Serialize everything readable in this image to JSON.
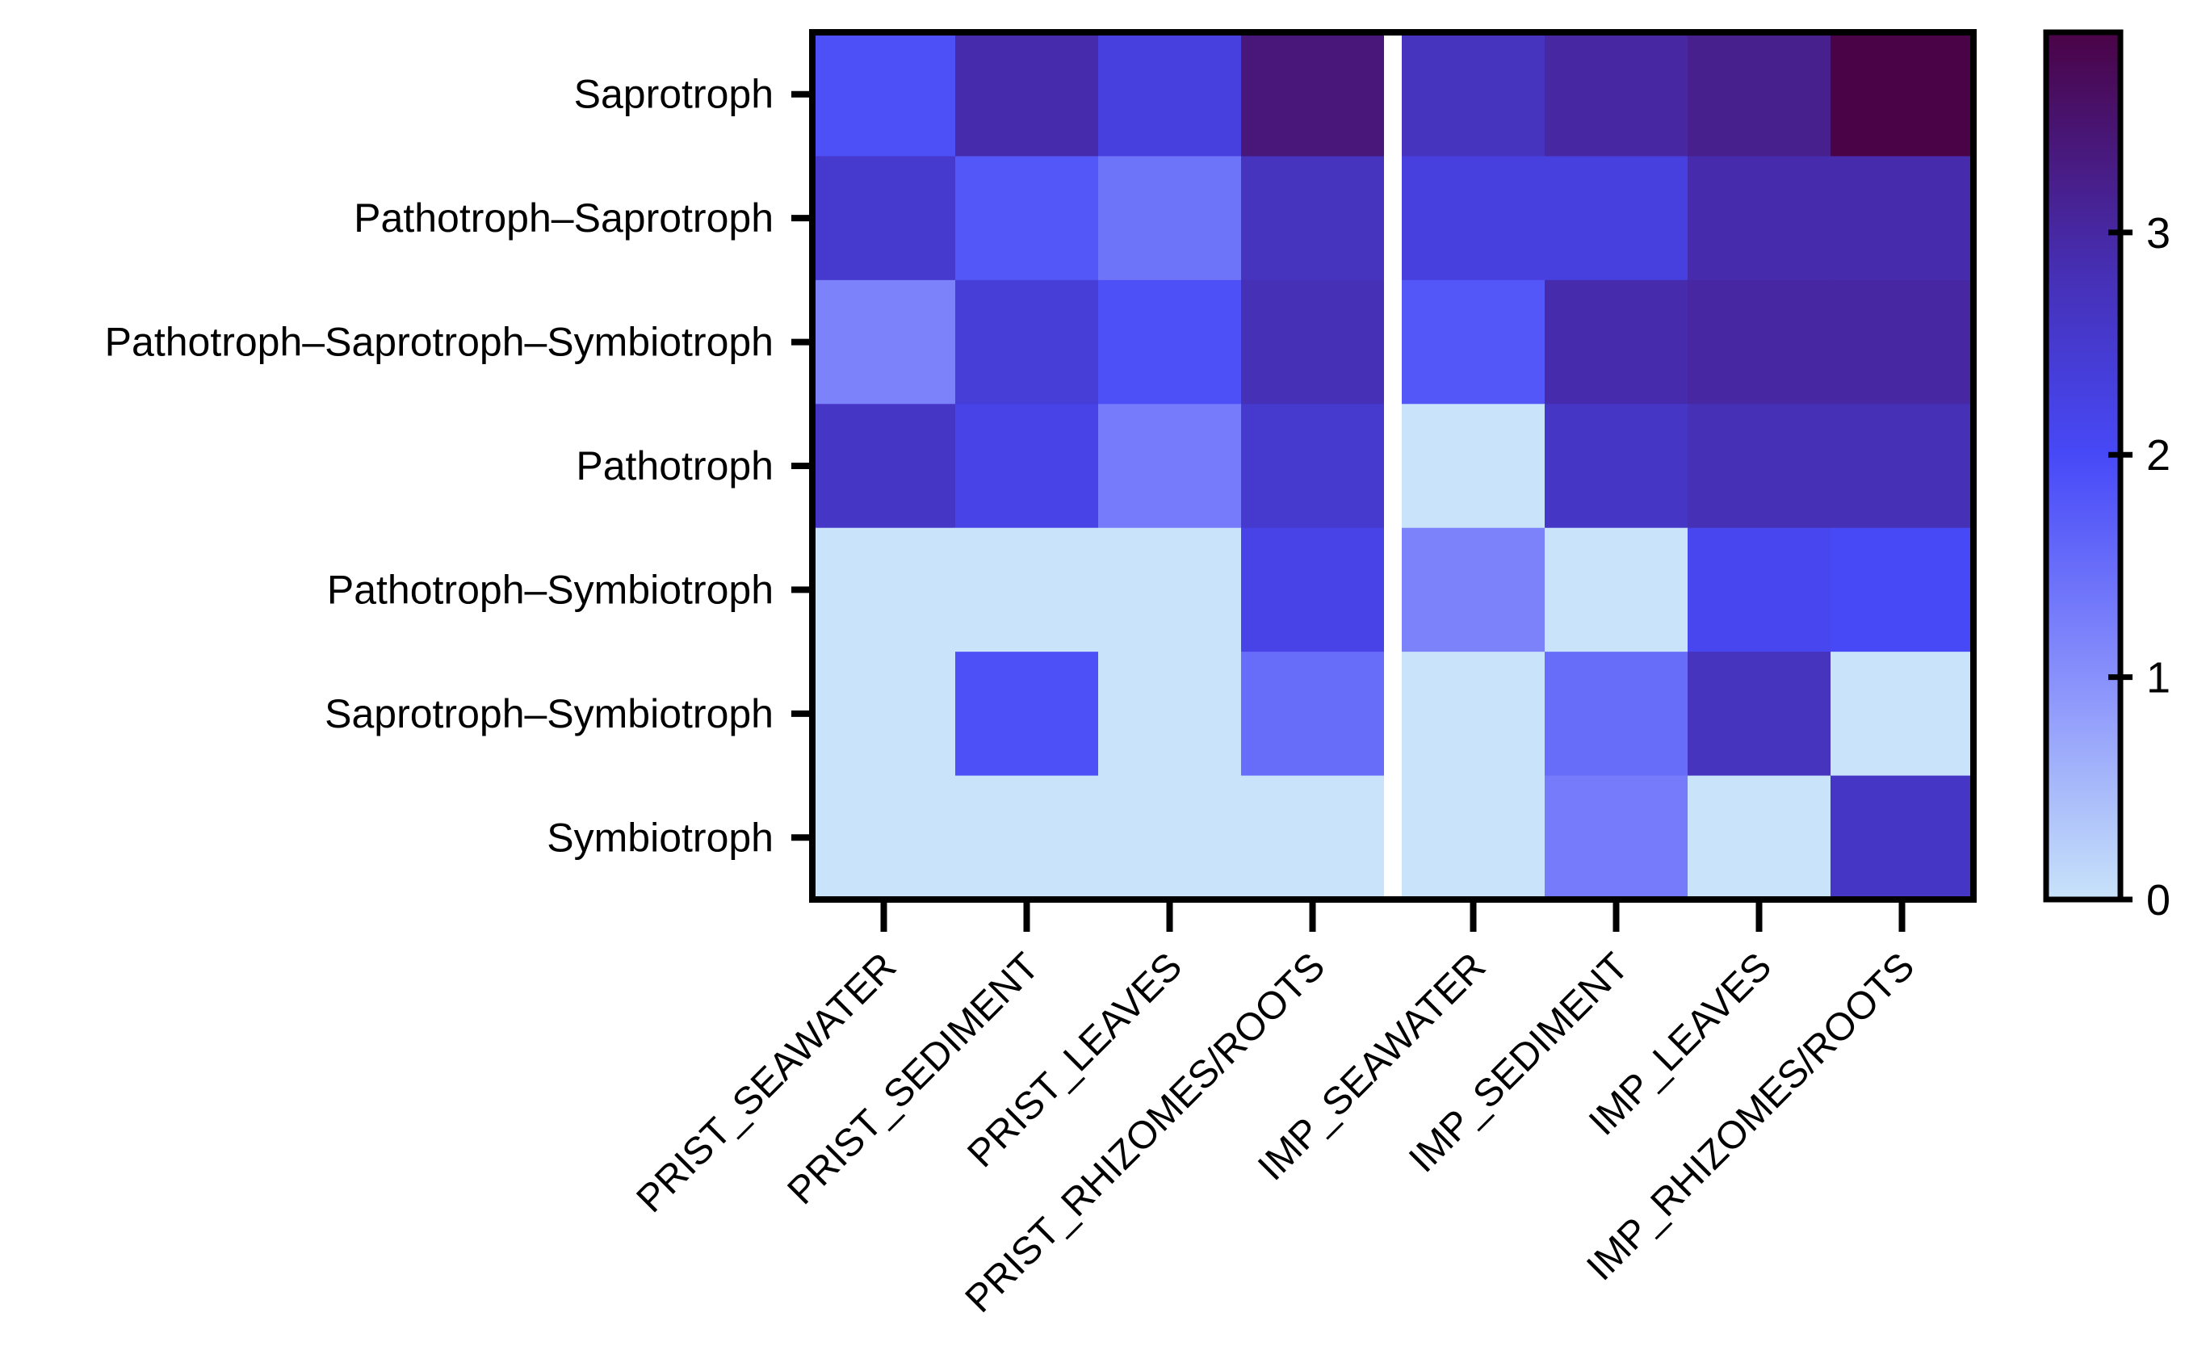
{
  "chart_data": {
    "type": "heatmap",
    "title": "",
    "xlabel": "",
    "ylabel": "",
    "rows": [
      "Saprotroph",
      "Pathotroph–Saprotroph",
      "Pathotroph–Saprotroph–Symbiotroph",
      "Pathotroph",
      "Pathotroph–Symbiotroph",
      "Saprotroph–Symbiotroph",
      "Symbiotroph"
    ],
    "columns": [
      "PRIST_SEAWATER",
      "PRIST_SEDIMENT",
      "PRIST_LEAVES",
      "PRIST_RHIZOMES/ROOTS",
      "IMP_SEAWATER",
      "IMP_SEDIMENT",
      "IMP_LEAVES",
      "IMP_RHIZOMES/ROOTS"
    ],
    "group_gap_after_column_index": 3,
    "values": [
      [
        1.9,
        2.9,
        2.3,
        3.4,
        2.7,
        3.0,
        3.2,
        3.9
      ],
      [
        2.5,
        1.8,
        1.4,
        2.7,
        2.3,
        2.3,
        2.9,
        2.9
      ],
      [
        1.2,
        2.4,
        1.9,
        2.8,
        1.8,
        2.9,
        3.0,
        3.0
      ],
      [
        2.6,
        2.2,
        1.3,
        2.5,
        0.0,
        2.6,
        2.8,
        2.8
      ],
      [
        0.0,
        0.0,
        0.0,
        2.2,
        1.2,
        0.0,
        2.1,
        2.0
      ],
      [
        0.0,
        1.9,
        0.0,
        1.5,
        0.0,
        1.5,
        2.7,
        0.0
      ],
      [
        0.0,
        0.0,
        0.0,
        0.0,
        0.0,
        1.3,
        0.0,
        2.6
      ]
    ],
    "colorbar": {
      "min": 0,
      "max": 3.9,
      "ticks": [
        0,
        1,
        2,
        3
      ],
      "tick_labels": [
        "0",
        "1",
        "2",
        "3"
      ],
      "color_stops": [
        {
          "value": 0.0,
          "color": "#c8e3fa"
        },
        {
          "value": 1.0,
          "color": "#8890fb"
        },
        {
          "value": 2.0,
          "color": "#4749f7"
        },
        {
          "value": 2.8,
          "color": "#4630b6"
        },
        {
          "value": 3.9,
          "color": "#4a0346"
        }
      ]
    },
    "colors": {
      "frame": "#000000",
      "gap": "#ffffff",
      "background": "#ffffff"
    }
  }
}
